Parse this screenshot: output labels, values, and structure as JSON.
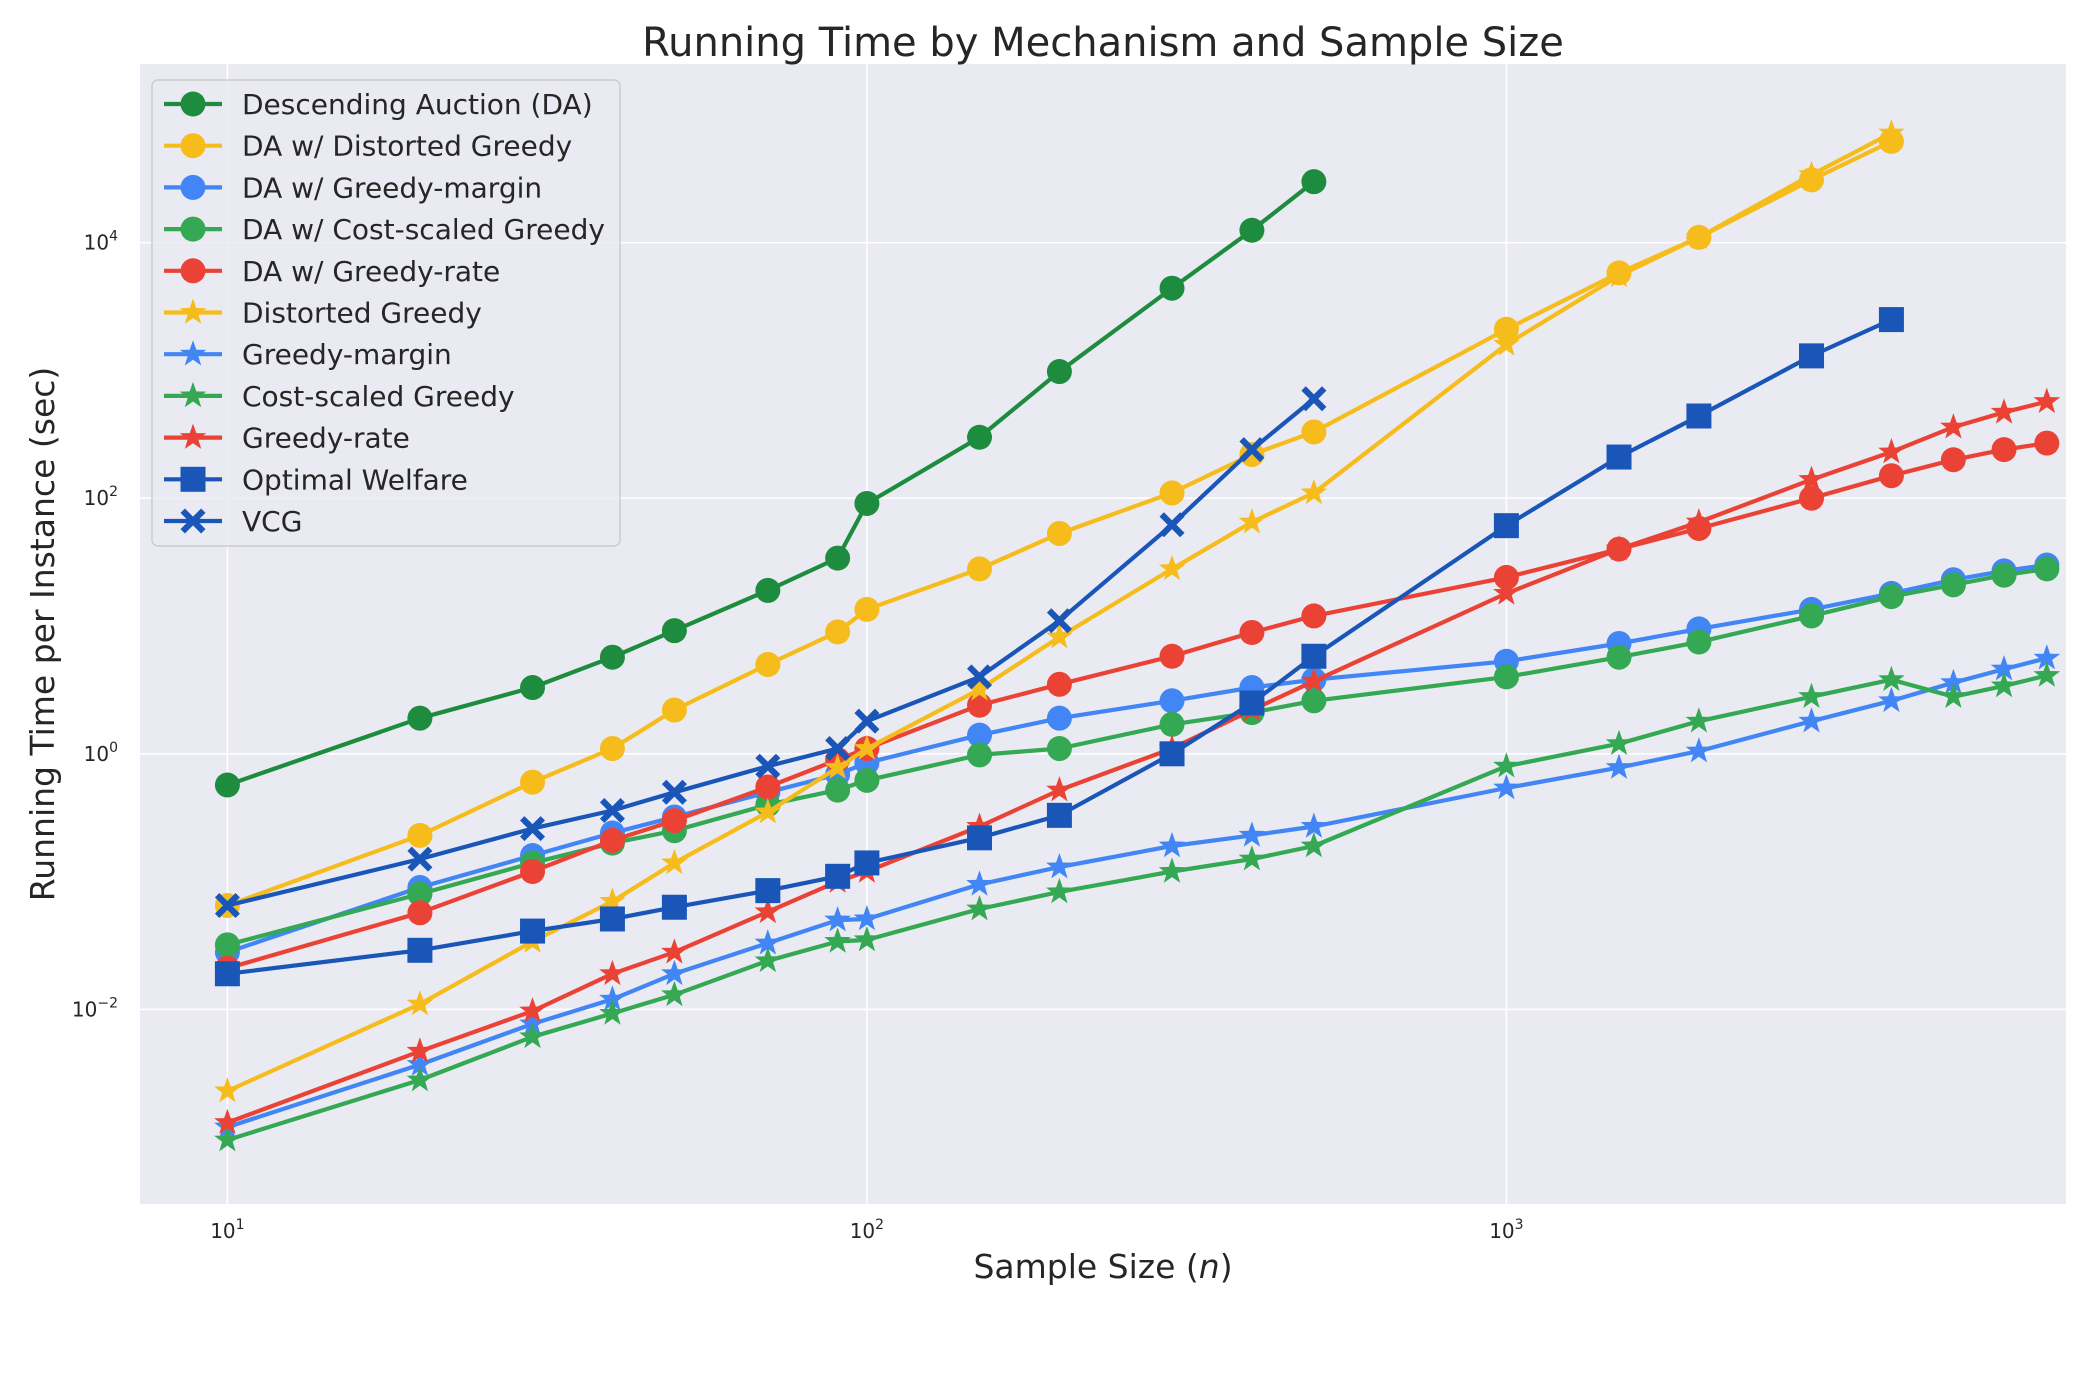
{
  "chart_data": {
    "type": "line",
    "title": "Running Time by Mechanism and Sample Size",
    "xlabel": "Sample Size (n)",
    "ylabel": "Running Time per Instance (sec)",
    "xscale": "log",
    "yscale": "log",
    "xlim": [
      7.3,
      7500
    ],
    "ylim": [
      0.0003,
      250000
    ],
    "x_ticks": [
      {
        "value": 10,
        "base": "10",
        "exp": "1"
      },
      {
        "value": 100,
        "base": "10",
        "exp": "2"
      },
      {
        "value": 1000,
        "base": "10",
        "exp": "3"
      }
    ],
    "y_ticks": [
      {
        "value": 0.01,
        "base": "10",
        "exp": "−2"
      },
      {
        "value": 1,
        "base": "10",
        "exp": "0"
      },
      {
        "value": 100,
        "base": "10",
        "exp": "2"
      },
      {
        "value": 10000,
        "base": "10",
        "exp": "4"
      }
    ],
    "grid": true,
    "legend_position": "top-left",
    "series": [
      {
        "name": "Descending Auction (DA)",
        "color": "#1e8c3f",
        "marker": "circle",
        "x": [
          10,
          20,
          30,
          40,
          50,
          70,
          90,
          100,
          150,
          200,
          300,
          400,
          500
        ],
        "y": [
          0.57,
          1.9,
          3.3,
          5.7,
          9.2,
          19,
          34,
          91,
          300,
          980,
          4400,
          12500,
          30000
        ]
      },
      {
        "name": "DA w/ Distorted Greedy",
        "color": "#f5bc1b",
        "marker": "circle",
        "x": [
          10,
          20,
          30,
          40,
          50,
          70,
          90,
          100,
          150,
          200,
          300,
          400,
          500,
          1000,
          1500,
          2000,
          3000,
          4000
        ],
        "y": [
          0.065,
          0.23,
          0.6,
          1.1,
          2.2,
          5,
          9,
          13.5,
          28,
          53,
          110,
          220,
          330,
          2100,
          5800,
          11000,
          31000,
          62000
        ]
      },
      {
        "name": "DA w/ Greedy-margin",
        "color": "#4285f4",
        "marker": "circle",
        "x": [
          10,
          20,
          30,
          40,
          50,
          70,
          90,
          100,
          150,
          200,
          300,
          400,
          500,
          1000,
          1500,
          2000,
          3000,
          4000,
          5000,
          6000,
          7000
        ],
        "y": [
          0.028,
          0.09,
          0.16,
          0.24,
          0.32,
          0.5,
          0.69,
          0.85,
          1.4,
          1.9,
          2.6,
          3.3,
          3.8,
          5.3,
          7.3,
          9.5,
          13.5,
          18,
          23,
          27,
          30
        ]
      },
      {
        "name": "DA w/ Cost-scaled Greedy",
        "color": "#34a853",
        "marker": "circle",
        "x": [
          10,
          20,
          30,
          40,
          50,
          70,
          90,
          100,
          150,
          200,
          300,
          400,
          500,
          1000,
          1500,
          2000,
          3000,
          4000,
          5000,
          6000,
          7000
        ],
        "y": [
          0.032,
          0.08,
          0.14,
          0.2,
          0.25,
          0.4,
          0.52,
          0.62,
          0.98,
          1.1,
          1.7,
          2.1,
          2.6,
          4,
          5.7,
          7.5,
          12,
          17,
          21,
          25,
          28
        ]
      },
      {
        "name": "DA w/ Greedy-rate",
        "color": "#ea4335",
        "marker": "circle",
        "x": [
          10,
          20,
          30,
          40,
          50,
          70,
          90,
          100,
          150,
          200,
          300,
          400,
          500,
          1000,
          1500,
          2000,
          3000,
          4000,
          5000,
          6000,
          7000
        ],
        "y": [
          0.021,
          0.057,
          0.12,
          0.21,
          0.3,
          0.55,
          0.9,
          1.1,
          2.4,
          3.5,
          5.8,
          8.9,
          12,
          24,
          40,
          58,
          100,
          150,
          200,
          240,
          270
        ]
      },
      {
        "name": "Distorted Greedy",
        "color": "#f5bc1b",
        "marker": "star",
        "x": [
          10,
          20,
          30,
          40,
          50,
          70,
          90,
          100,
          150,
          200,
          300,
          400,
          500,
          1000,
          1500,
          2000,
          3000,
          4000
        ],
        "y": [
          0.0023,
          0.011,
          0.034,
          0.07,
          0.14,
          0.35,
          0.78,
          1.1,
          3.2,
          8.2,
          28,
          65,
          110,
          1600,
          5500,
          11000,
          34000,
          72000
        ]
      },
      {
        "name": "Greedy-margin",
        "color": "#4285f4",
        "marker": "star",
        "x": [
          10,
          20,
          30,
          40,
          50,
          70,
          90,
          100,
          150,
          200,
          300,
          400,
          500,
          1000,
          1500,
          2000,
          3000,
          4000,
          5000,
          6000,
          7000
        ],
        "y": [
          0.0012,
          0.0037,
          0.0077,
          0.012,
          0.019,
          0.033,
          0.05,
          0.051,
          0.095,
          0.13,
          0.19,
          0.23,
          0.27,
          0.54,
          0.78,
          1.05,
          1.8,
          2.6,
          3.6,
          4.6,
          5.6
        ]
      },
      {
        "name": "Cost-scaled Greedy",
        "color": "#34a853",
        "marker": "star",
        "x": [
          10,
          20,
          30,
          40,
          50,
          70,
          90,
          100,
          150,
          200,
          300,
          400,
          500,
          1000,
          1500,
          2000,
          3000,
          4000,
          5000,
          6000,
          7000
        ],
        "y": [
          0.00095,
          0.0028,
          0.0061,
          0.0093,
          0.013,
          0.024,
          0.034,
          0.035,
          0.061,
          0.083,
          0.12,
          0.15,
          0.19,
          0.8,
          1.2,
          1.8,
          2.8,
          3.8,
          2.8,
          3.4,
          4.1
        ]
      },
      {
        "name": "Greedy-rate",
        "color": "#ea4335",
        "marker": "star",
        "x": [
          10,
          20,
          30,
          40,
          50,
          70,
          90,
          100,
          150,
          200,
          300,
          400,
          500,
          1000,
          1500,
          2000,
          3000,
          4000,
          5000,
          6000,
          7000
        ],
        "y": [
          0.0013,
          0.0047,
          0.0097,
          0.019,
          0.028,
          0.058,
          0.1,
          0.12,
          0.27,
          0.52,
          1.1,
          2.2,
          3.7,
          18,
          40,
          65,
          140,
          230,
          360,
          470,
          570
        ]
      },
      {
        "name": "Optimal Welfare",
        "color": "#1a56b8",
        "marker": "square",
        "x": [
          10,
          20,
          30,
          40,
          50,
          70,
          90,
          100,
          150,
          200,
          300,
          400,
          500,
          1000,
          1500,
          2000,
          3000,
          4000
        ],
        "y": [
          0.019,
          0.029,
          0.041,
          0.051,
          0.063,
          0.085,
          0.11,
          0.14,
          0.22,
          0.33,
          1.0,
          2.5,
          5.8,
          61,
          210,
          440,
          1300,
          2500
        ]
      },
      {
        "name": "VCG",
        "color": "#1a56b8",
        "marker": "x",
        "x": [
          10,
          20,
          30,
          40,
          50,
          70,
          90,
          100,
          150,
          200,
          300,
          400,
          500
        ],
        "y": [
          0.065,
          0.15,
          0.26,
          0.36,
          0.5,
          0.8,
          1.1,
          1.8,
          4,
          11,
          62,
          240,
          600
        ]
      }
    ]
  }
}
